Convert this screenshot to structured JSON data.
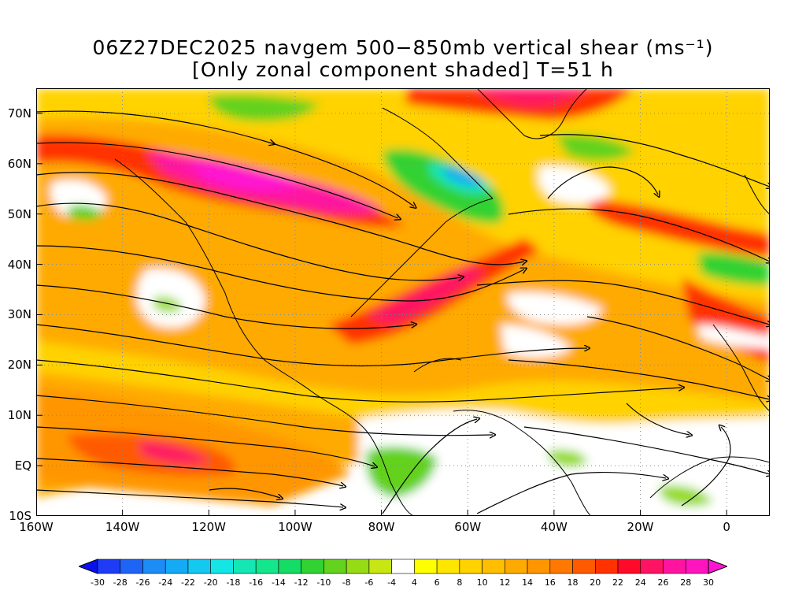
{
  "title": {
    "line1": "06Z27DEC2025 navgem 500−850mb vertical shear (ms⁻¹)",
    "line2": "[Only zonal component shaded] T=51 h"
  },
  "map": {
    "lon_range": [
      -160,
      10
    ],
    "lat_range": [
      -10,
      75
    ],
    "lat_ticks": [
      {
        "value": 70,
        "label": "70N"
      },
      {
        "value": 60,
        "label": "60N"
      },
      {
        "value": 50,
        "label": "50N"
      },
      {
        "value": 40,
        "label": "40N"
      },
      {
        "value": 30,
        "label": "30N"
      },
      {
        "value": 20,
        "label": "20N"
      },
      {
        "value": 10,
        "label": "10N"
      },
      {
        "value": 0,
        "label": "EQ"
      },
      {
        "value": -10,
        "label": "10S"
      }
    ],
    "lon_ticks": [
      {
        "value": -160,
        "label": "160W"
      },
      {
        "value": -140,
        "label": "140W"
      },
      {
        "value": -120,
        "label": "120W"
      },
      {
        "value": -100,
        "label": "100W"
      },
      {
        "value": -80,
        "label": "80W"
      },
      {
        "value": -60,
        "label": "60W"
      },
      {
        "value": -40,
        "label": "40W"
      },
      {
        "value": -20,
        "label": "20W"
      },
      {
        "value": 0,
        "label": "0"
      }
    ],
    "grid": "dotted"
  },
  "colorbar": {
    "labels": [
      "-30",
      "-28",
      "-26",
      "-24",
      "-22",
      "-20",
      "-18",
      "-16",
      "-14",
      "-12",
      "-10",
      "-8",
      "-6",
      "-4",
      "4",
      "6",
      "8",
      "10",
      "12",
      "14",
      "16",
      "18",
      "20",
      "22",
      "24",
      "26",
      "28",
      "30"
    ],
    "colors": [
      "#0a10f0",
      "#1e3cf5",
      "#1e64f5",
      "#1e8cf5",
      "#14aaf5",
      "#14c8f0",
      "#14e6e6",
      "#14e6b4",
      "#14e68c",
      "#14dc64",
      "#32d232",
      "#64d21e",
      "#96dc14",
      "#c8e614",
      "#ffffff",
      "#ffff00",
      "#ffe600",
      "#ffd200",
      "#ffbe00",
      "#ffaa00",
      "#ff9600",
      "#ff7800",
      "#ff5a00",
      "#ff3200",
      "#ff0a28",
      "#ff1464",
      "#ff14a0",
      "#ff14be",
      "#ff14d2"
    ]
  }
}
